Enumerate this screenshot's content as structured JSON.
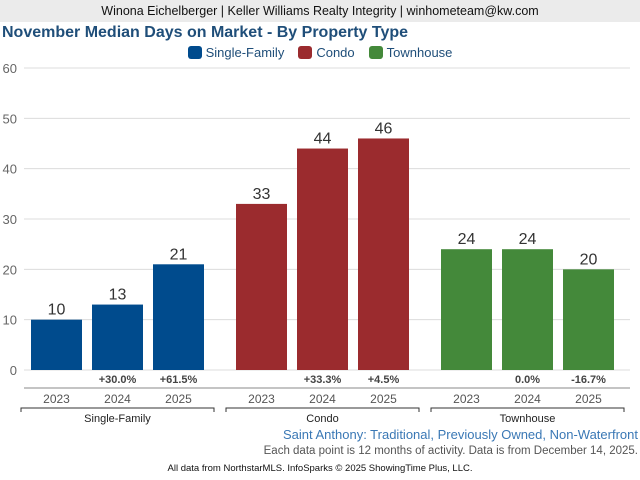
{
  "header": {
    "agent_line": "Winona Eichelberger | Keller Williams Realty Integrity | winhometeam@kw.com"
  },
  "chart_data": {
    "type": "bar",
    "title": "November Median Days on Market - By Property Type",
    "xlabel": "",
    "ylabel": "",
    "ylim": [
      0,
      60
    ],
    "yticks": [
      0,
      10,
      20,
      30,
      40,
      50,
      60
    ],
    "grid": true,
    "legend_position": "top-center",
    "legend": [
      {
        "name": "Single-Family",
        "color": "#004b8d"
      },
      {
        "name": "Condo",
        "color": "#9b2b2e"
      },
      {
        "name": "Townhouse",
        "color": "#44893a"
      }
    ],
    "groups": [
      {
        "name": "Single-Family",
        "color": "#004b8d",
        "categories": [
          "2023",
          "2024",
          "2025"
        ],
        "values": [
          10,
          13,
          21
        ],
        "changes": [
          "",
          "+30.0%",
          "+61.5%"
        ]
      },
      {
        "name": "Condo",
        "color": "#9b2b2e",
        "categories": [
          "2023",
          "2024",
          "2025"
        ],
        "values": [
          33,
          44,
          46
        ],
        "changes": [
          "",
          "+33.3%",
          "+4.5%"
        ]
      },
      {
        "name": "Townhouse",
        "color": "#44893a",
        "categories": [
          "2023",
          "2024",
          "2025"
        ],
        "values": [
          24,
          24,
          20
        ],
        "changes": [
          "",
          "0.0%",
          "-16.7%"
        ]
      }
    ]
  },
  "subtitle": "Saint Anthony: Traditional, Previously Owned, Non-Waterfront",
  "note": "Each data point is 12 months of activity. Data is from December 14, 2025.",
  "footer": "All data from NorthstarMLS. InfoSparks © 2025 ShowingTime Plus, LLC."
}
